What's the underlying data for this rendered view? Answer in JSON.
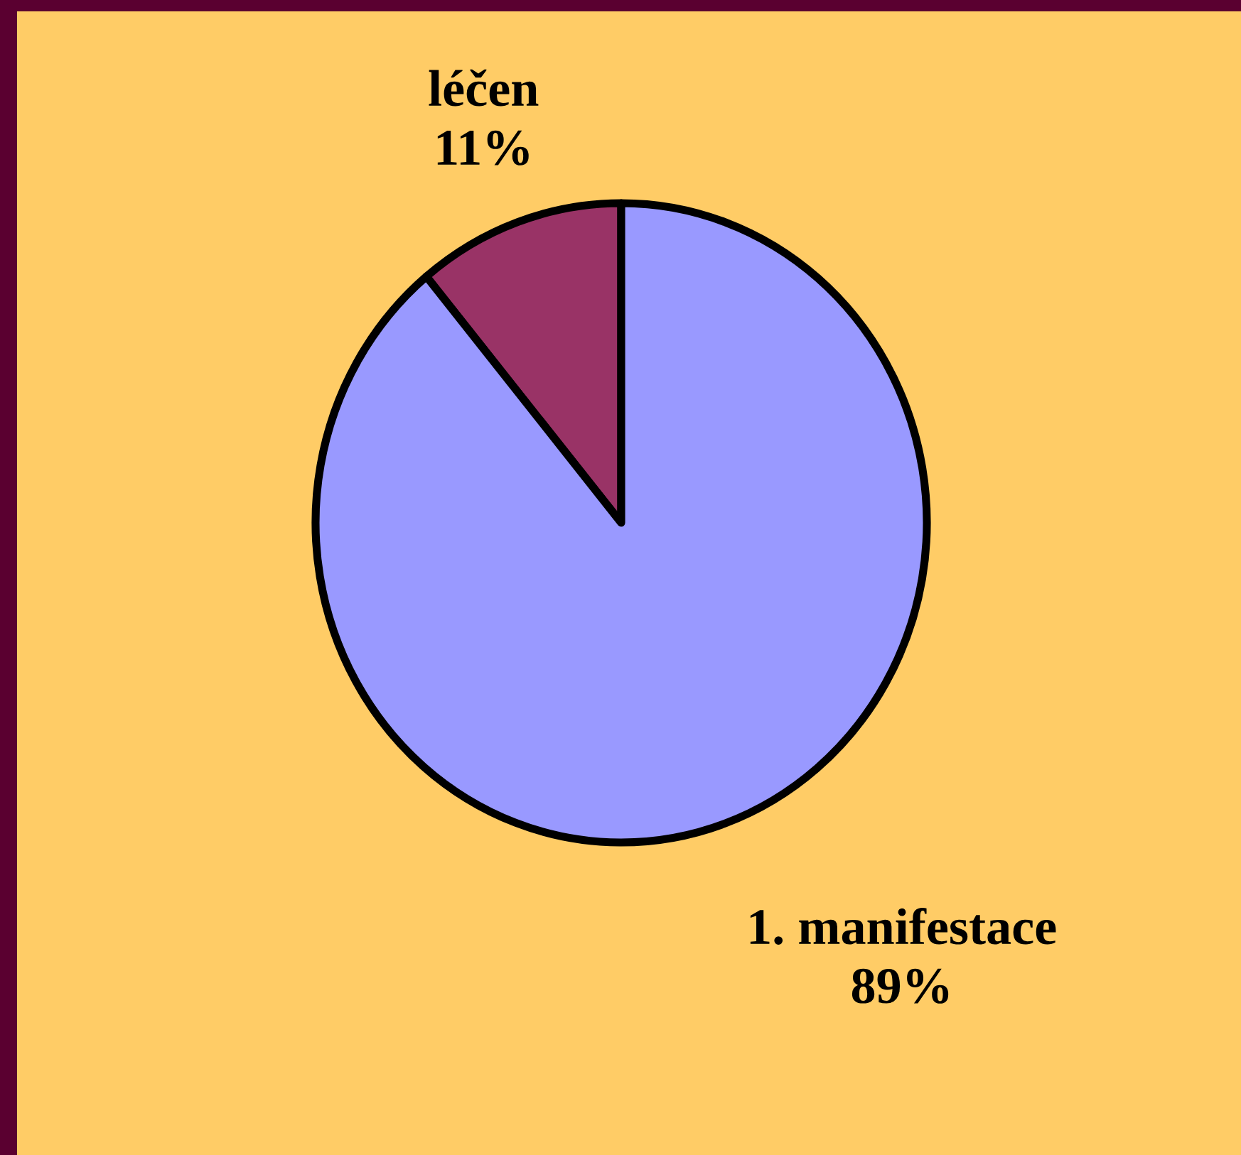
{
  "chart_data": {
    "type": "pie",
    "categories": [
      "léčen",
      "1. manifestace"
    ],
    "values": [
      11,
      89
    ],
    "colors": [
      "#993366",
      "#9999ff"
    ],
    "value_labels": [
      "11%",
      "89%"
    ]
  }
}
